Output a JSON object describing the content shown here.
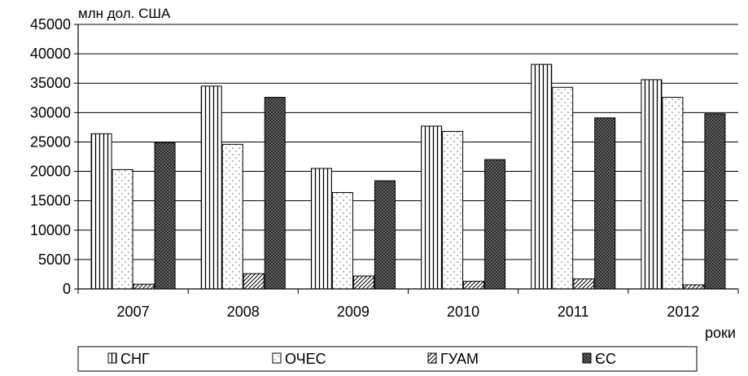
{
  "chart_data": {
    "type": "bar",
    "ylabel": "млн дол. США",
    "xlabel": "роки",
    "ylim": [
      0,
      45000
    ],
    "yticks": [
      0,
      5000,
      10000,
      15000,
      20000,
      25000,
      30000,
      35000,
      40000,
      45000
    ],
    "grid": true,
    "legend_position": "bottom",
    "categories": [
      "2007",
      "2008",
      "2009",
      "2010",
      "2011",
      "2012"
    ],
    "series": [
      {
        "name": "СНГ",
        "pattern": "vertical-stripes",
        "values": [
          26400,
          34500,
          20500,
          27700,
          38200,
          35600
        ]
      },
      {
        "name": "ОЧЕС",
        "pattern": "dots",
        "values": [
          20300,
          24600,
          16400,
          26800,
          34300,
          32600
        ]
      },
      {
        "name": "ГУАМ",
        "pattern": "diagonal-hatch",
        "values": [
          800,
          2600,
          2200,
          1300,
          1700,
          700
        ]
      },
      {
        "name": "ЄС",
        "pattern": "crosshatch",
        "values": [
          24900,
          32600,
          18400,
          22000,
          29100,
          29800
        ]
      }
    ]
  }
}
